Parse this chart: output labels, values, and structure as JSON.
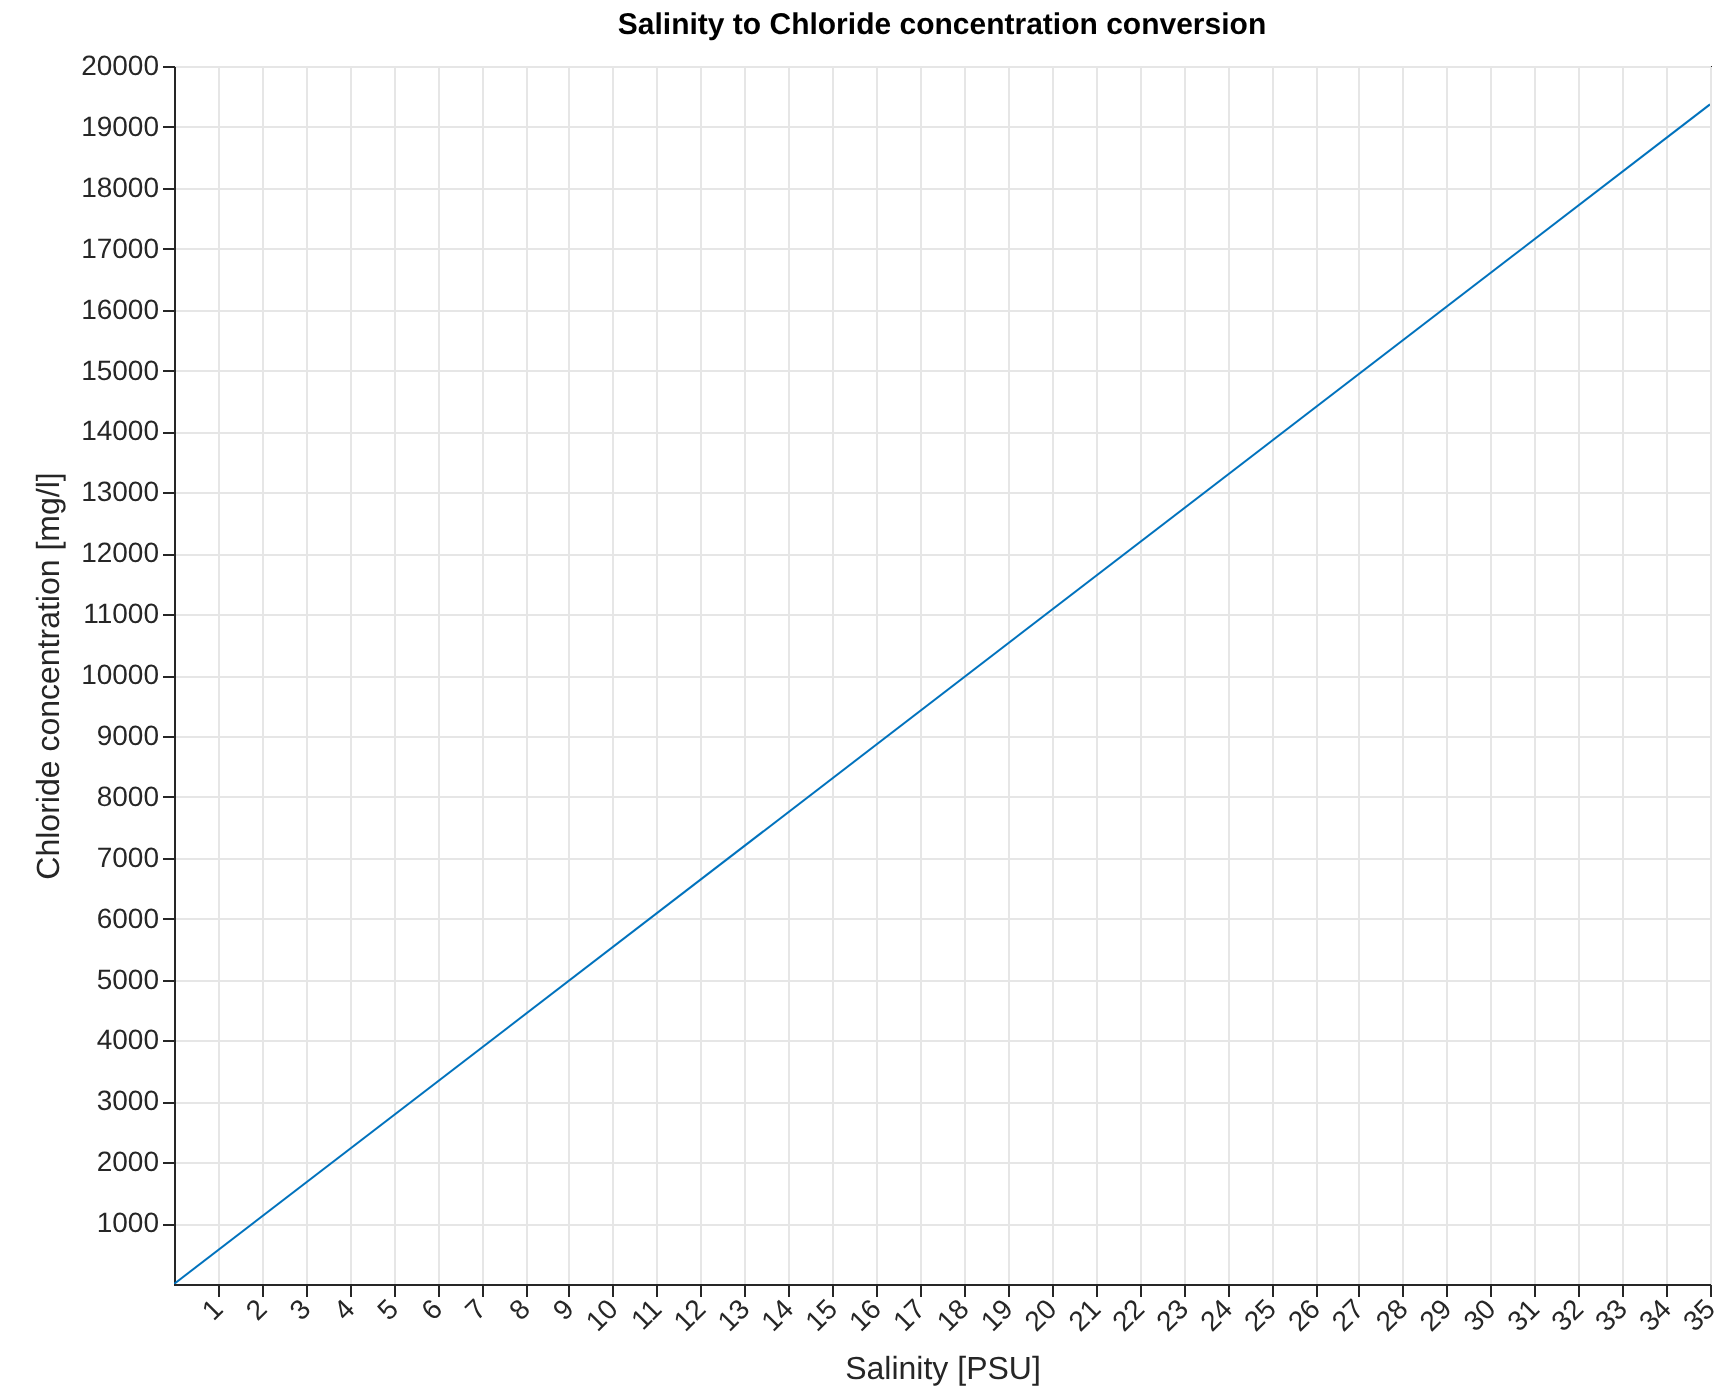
{
  "chart_data": {
    "type": "line",
    "title": "Salinity to Chloride concentration conversion",
    "xlabel": "Salinity [PSU]",
    "ylabel": "Chloride concentration [mg/l]",
    "x": [
      0,
      35
    ],
    "series": [
      {
        "color": "#0072bd",
        "values": [
          0,
          19370
        ]
      }
    ],
    "xlim": [
      0,
      35
    ],
    "xticks": [
      1,
      2,
      3,
      4,
      5,
      6,
      7,
      8,
      9,
      10,
      11,
      12,
      13,
      14,
      15,
      16,
      17,
      18,
      19,
      20,
      21,
      22,
      23,
      24,
      25,
      26,
      27,
      28,
      29,
      30,
      31,
      32,
      33,
      34,
      35
    ],
    "ylim": [
      0,
      20000
    ],
    "yticks": [
      1000,
      2000,
      3000,
      4000,
      5000,
      6000,
      7000,
      8000,
      9000,
      10000,
      11000,
      12000,
      13000,
      14000,
      15000,
      16000,
      17000,
      18000,
      19000,
      20000
    ],
    "grid": true,
    "marker": "none",
    "line_style": "solid"
  }
}
